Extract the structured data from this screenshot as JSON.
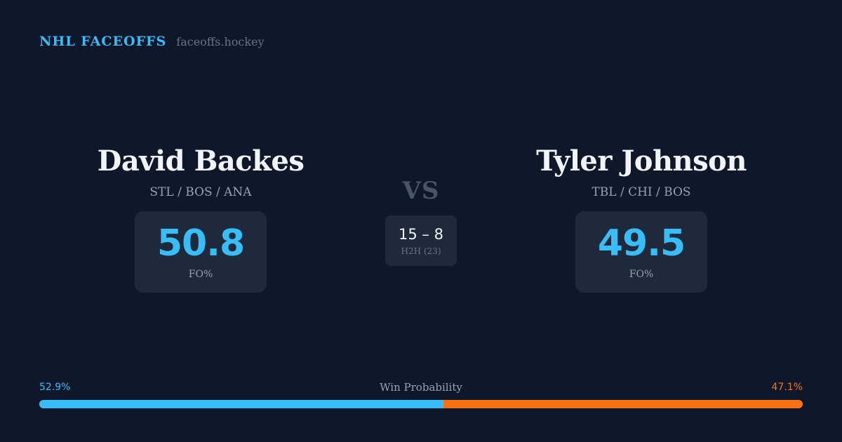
{
  "brand": {
    "name": "NHL FACEOFFS",
    "domain": "faceoffs.hockey"
  },
  "player_left": {
    "name": "David Backes",
    "teams": "STL / BOS / ANA",
    "fo_pct": "50.8",
    "fo_label": "FO%"
  },
  "player_right": {
    "name": "Tyler Johnson",
    "teams": "TBL / CHI / BOS",
    "fo_pct": "49.5",
    "fo_label": "FO%"
  },
  "versus": {
    "label": "VS",
    "h2h_score": "15 – 8",
    "h2h_label": "H2H (23)"
  },
  "win_probability": {
    "title": "Win Probability",
    "left_label": "52.9%",
    "right_label": "47.1%",
    "left_value": 52.9,
    "right_value": 47.1,
    "left_color": "#38bdf8",
    "right_color": "#f97316"
  }
}
